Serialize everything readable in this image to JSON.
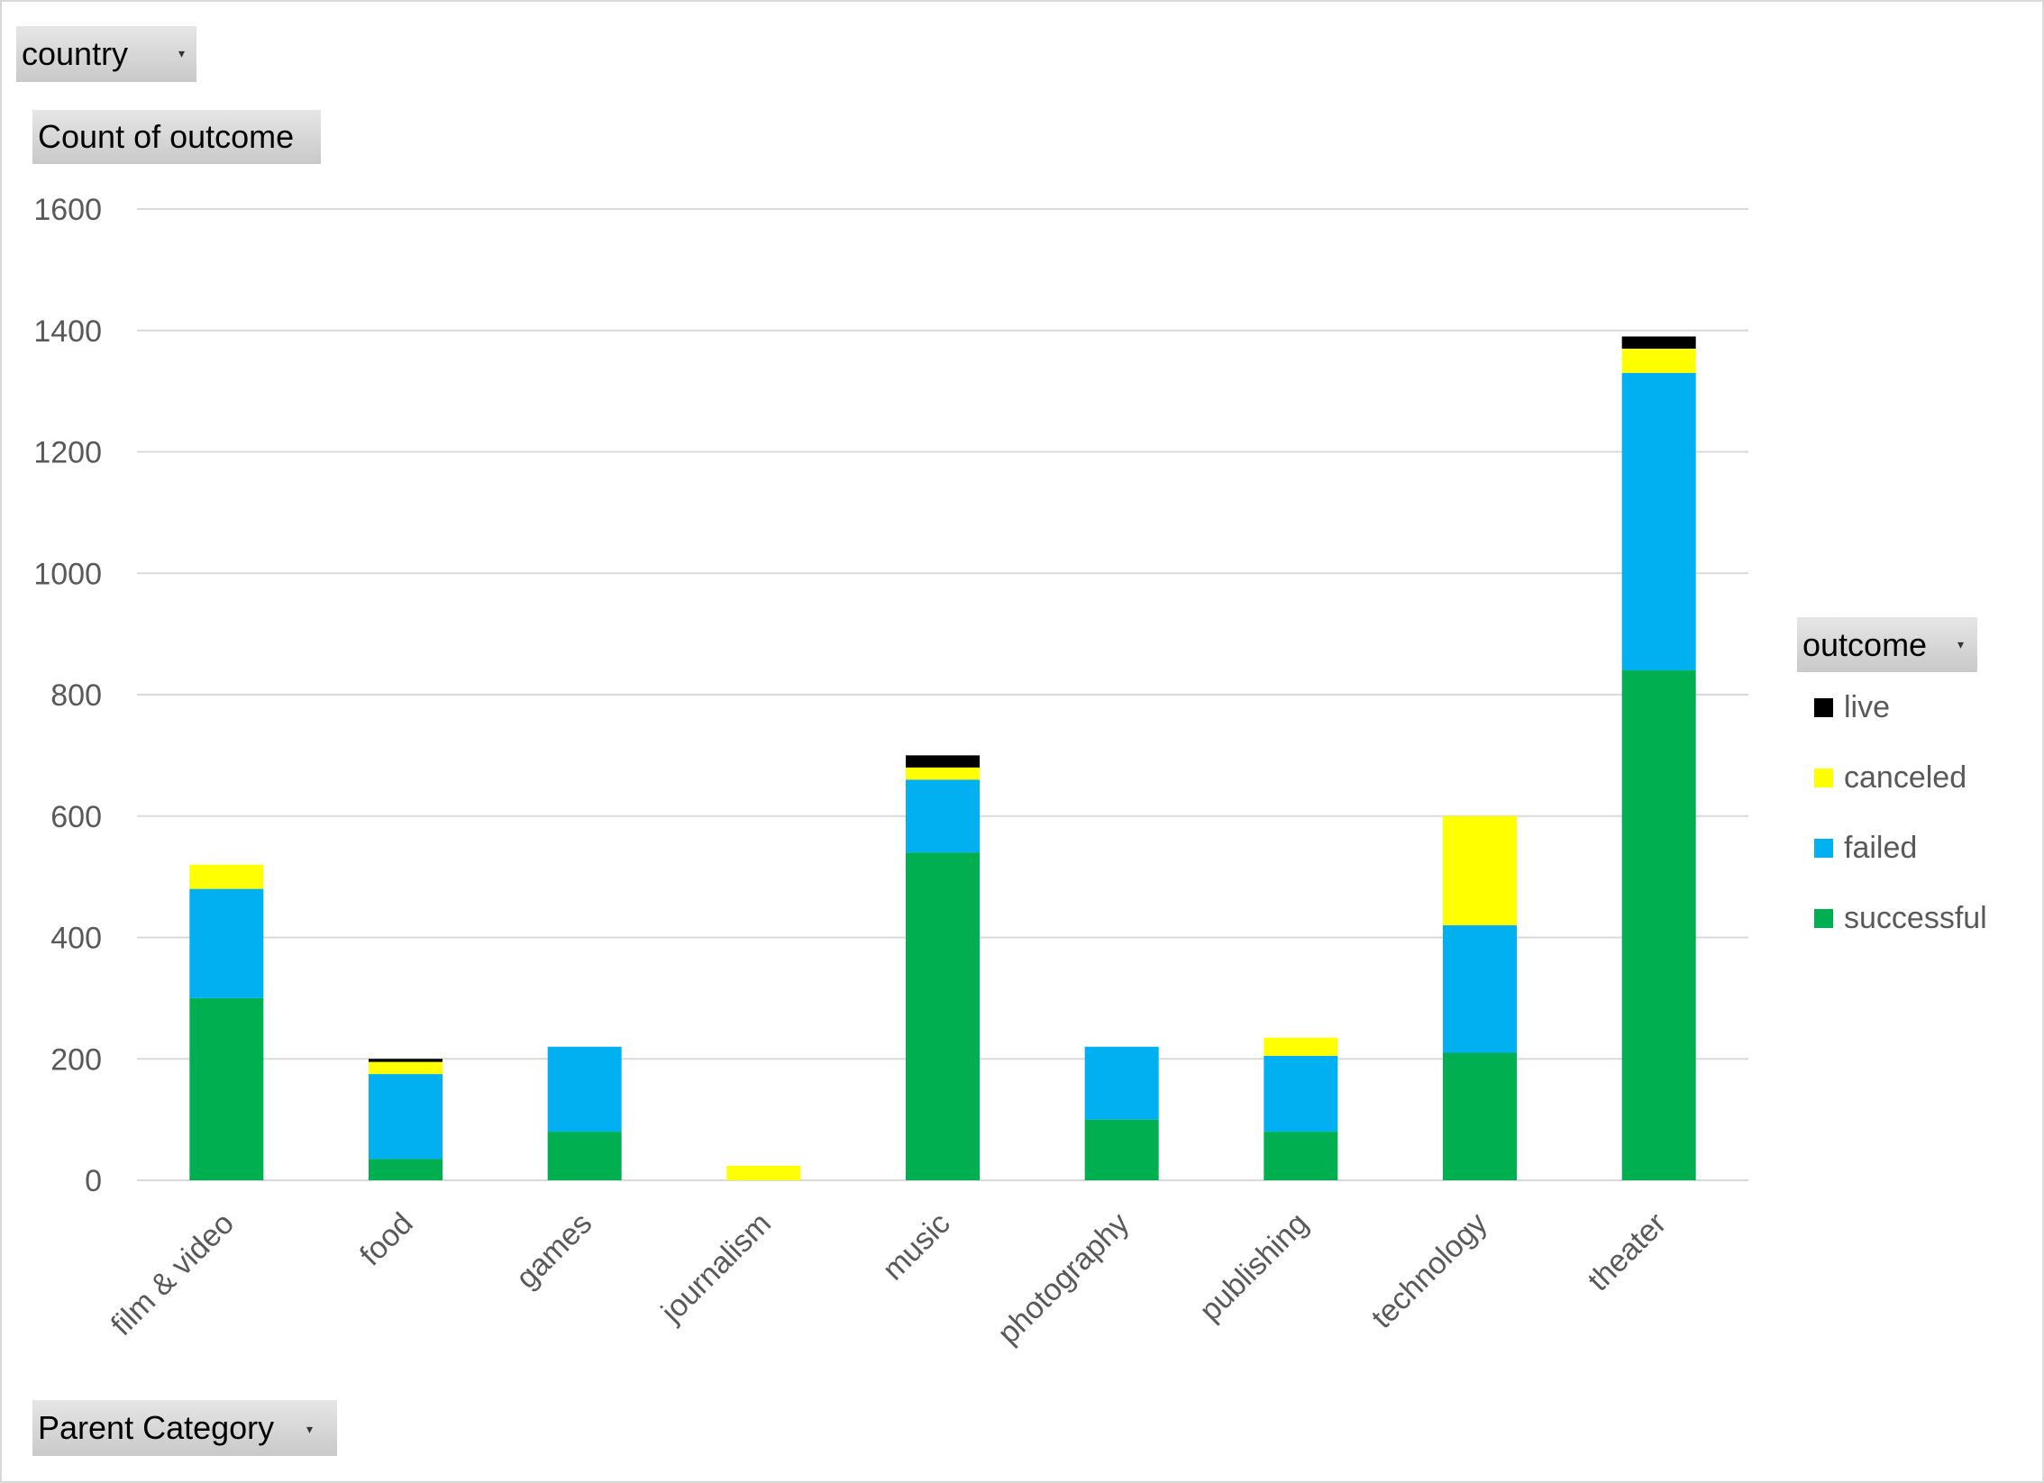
{
  "filters": {
    "country_label": "country",
    "value_label": "Count of outcome",
    "axis_field_label": "Parent Category",
    "legend_field_label": "outcome",
    "dropdown_icon": "dropdown-arrow-icon"
  },
  "colors": {
    "successful": "#00B050",
    "failed": "#00B0F0",
    "canceled": "#FFFF00",
    "live": "#000000",
    "gridline": "#D9D9D9",
    "text": "#595959"
  },
  "chart_data": {
    "type": "bar",
    "stacked": true,
    "title": "",
    "xlabel": "",
    "ylabel": "",
    "ylim": [
      0,
      1600
    ],
    "yticks": [
      0,
      200,
      400,
      600,
      800,
      1000,
      1200,
      1400,
      1600
    ],
    "grid": true,
    "legend_position": "right",
    "categories": [
      "film & video",
      "food",
      "games",
      "journalism",
      "music",
      "photography",
      "publishing",
      "technology",
      "theater"
    ],
    "series": [
      {
        "name": "successful",
        "color": "#00B050",
        "values": [
          300,
          35,
          80,
          0,
          540,
          100,
          80,
          210,
          840
        ]
      },
      {
        "name": "failed",
        "color": "#00B0F0",
        "values": [
          180,
          140,
          140,
          0,
          120,
          120,
          125,
          210,
          490
        ]
      },
      {
        "name": "canceled",
        "color": "#FFFF00",
        "values": [
          40,
          20,
          0,
          24,
          20,
          0,
          30,
          180,
          40
        ]
      },
      {
        "name": "live",
        "color": "#000000",
        "values": [
          0,
          5,
          0,
          0,
          20,
          0,
          0,
          0,
          20
        ]
      }
    ],
    "legend_order": [
      "live",
      "canceled",
      "failed",
      "successful"
    ]
  }
}
